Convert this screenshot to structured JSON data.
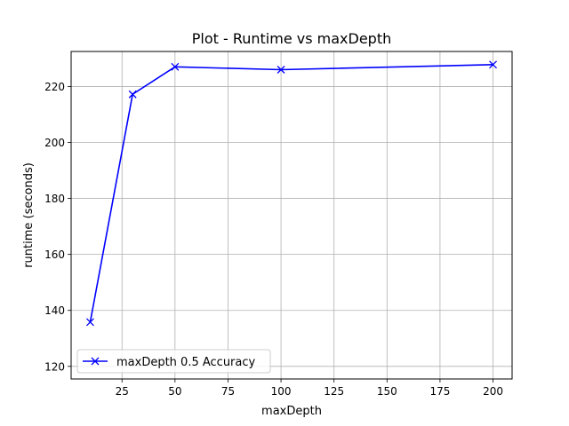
{
  "chart_data": {
    "type": "line",
    "title": "Plot - Runtime vs maxDepth",
    "xlabel": "maxDepth",
    "ylabel": "runtime (seconds)",
    "xlim": [
      1,
      209
    ],
    "ylim": [
      115.5,
      232.5
    ],
    "xticks": [
      25,
      50,
      75,
      100,
      125,
      150,
      175,
      200
    ],
    "yticks": [
      120,
      140,
      160,
      180,
      200,
      220
    ],
    "grid": true,
    "legend_position": "lower-left",
    "series": [
      {
        "name": "maxDepth 0.5 Accuracy",
        "color": "#0000ff",
        "marker": "x",
        "x": [
          10,
          30,
          50,
          100,
          200
        ],
        "y": [
          135.8,
          217.2,
          227.0,
          226.0,
          227.8
        ]
      }
    ]
  }
}
